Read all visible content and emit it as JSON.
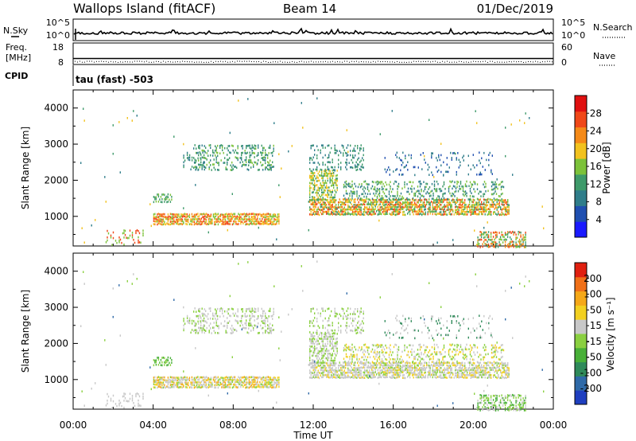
{
  "header": {
    "station": "Wallops Island (fitACF)",
    "beam": "Beam 14",
    "date": "01/Dec/2019"
  },
  "chart_data": [
    {
      "type": "line",
      "panel": "noise",
      "left_label": "N.Sky",
      "right_label": "N.Search",
      "left_ticks": [
        "10^5",
        "10^0"
      ],
      "right_ticks": [
        "10^5",
        "10^0"
      ],
      "level_fraction": 0.35
    },
    {
      "type": "line",
      "panel": "frequency",
      "left_label_line1": "Freq.",
      "left_label_line2": "[MHz]",
      "right_label": "Nave",
      "left_ticks": [
        "18",
        "8"
      ],
      "right_ticks": [
        "60",
        "0"
      ],
      "level_fraction": 0.28
    },
    {
      "type": "text",
      "panel": "cpid",
      "label": "CPID",
      "value": "tau (fast) -503"
    },
    {
      "type": "heatmap",
      "panel": "power",
      "ylabel": "Slant Range [km]",
      "ylim": [
        180,
        4500
      ],
      "yticks": [
        1000,
        2000,
        3000,
        4000
      ],
      "xlim": [
        0,
        24
      ],
      "colorbar": {
        "label": "Power [dB]",
        "ticks": [
          "4",
          "8",
          "12",
          "16",
          "20",
          "24",
          "28"
        ],
        "colors": [
          "#1a1aff",
          "#1f4fb0",
          "#2f7d8a",
          "#3e9a6a",
          "#7cc23a",
          "#f2c21e",
          "#f58a18",
          "#f04818",
          "#e01010"
        ]
      }
    },
    {
      "type": "heatmap",
      "panel": "velocity",
      "ylabel": "Slant Range [km]",
      "ylim": [
        180,
        4500
      ],
      "yticks": [
        1000,
        2000,
        3000,
        4000
      ],
      "xlim": [
        0,
        24
      ],
      "xticks": [
        "00:00",
        "04:00",
        "08:00",
        "12:00",
        "16:00",
        "20:00",
        "00:00"
      ],
      "xlabel": "Time UT",
      "colorbar": {
        "label": "Velocity [m s⁻¹]",
        "ticks": [
          "200",
          "100",
          "50",
          "15",
          "-15",
          "-50",
          "-100",
          "-200"
        ],
        "colors": [
          "#1f3fbf",
          "#2f6aa8",
          "#2f8a5a",
          "#48b038",
          "#8ad040",
          "#c8c8c8",
          "#f2d020",
          "#f5a818",
          "#f07018",
          "#e02010"
        ]
      }
    }
  ],
  "scatter_regions": [
    {
      "t0": 4.0,
      "t1": 10.3,
      "r0": 820,
      "r1": 1100,
      "density": 0.85,
      "pw": [
        5,
        6,
        7,
        4
      ],
      "vl": [
        5,
        5,
        4,
        6,
        7
      ]
    },
    {
      "t0": 4.0,
      "t1": 4.9,
      "r0": 1450,
      "r1": 1650,
      "density": 0.6,
      "pw": [
        3,
        4,
        3
      ],
      "vl": [
        3,
        4,
        3
      ]
    },
    {
      "t0": 6.0,
      "t1": 10.0,
      "r0": 2300,
      "r1": 3000,
      "density": 0.35,
      "pw": [
        3,
        4,
        2,
        3
      ],
      "vl": [
        5,
        4,
        5
      ]
    },
    {
      "t0": 5.5,
      "t1": 6.6,
      "r0": 2300,
      "r1": 2800,
      "density": 0.25,
      "pw": [
        3,
        2
      ],
      "vl": [
        5,
        4
      ]
    },
    {
      "t0": 11.8,
      "t1": 21.8,
      "r0": 1050,
      "r1": 1500,
      "density": 0.8,
      "pw": [
        4,
        5,
        6,
        7,
        3
      ],
      "vl": [
        5,
        5,
        5,
        4,
        6
      ]
    },
    {
      "t0": 11.8,
      "t1": 13.2,
      "r0": 1500,
      "r1": 2300,
      "density": 0.55,
      "pw": [
        4,
        5,
        3
      ],
      "vl": [
        5,
        4,
        5
      ]
    },
    {
      "t0": 11.8,
      "t1": 14.5,
      "r0": 2300,
      "r1": 3000,
      "density": 0.25,
      "pw": [
        2,
        3
      ],
      "vl": [
        5,
        4
      ]
    },
    {
      "t0": 13.5,
      "t1": 21.5,
      "r0": 1500,
      "r1": 2000,
      "density": 0.3,
      "pw": [
        3,
        2,
        4
      ],
      "vl": [
        5,
        4,
        6
      ]
    },
    {
      "t0": 15.5,
      "t1": 21.0,
      "r0": 2200,
      "r1": 2800,
      "density": 0.12,
      "pw": [
        2,
        1
      ],
      "vl": [
        2,
        5
      ]
    },
    {
      "t0": 20.2,
      "t1": 22.6,
      "r0": 200,
      "r1": 600,
      "density": 0.55,
      "pw": [
        6,
        7,
        4,
        3
      ],
      "vl": [
        5,
        4,
        3
      ]
    },
    {
      "t0": 1.5,
      "t1": 3.5,
      "r0": 200,
      "r1": 650,
      "density": 0.2,
      "pw": [
        7,
        4
      ],
      "vl": [
        5
      ]
    },
    {
      "t0": 0.3,
      "t1": 23.5,
      "r0": 200,
      "r1": 4300,
      "density": 0.003,
      "pw": [
        2,
        3,
        5
      ],
      "vl": [
        5,
        4,
        1
      ]
    }
  ]
}
